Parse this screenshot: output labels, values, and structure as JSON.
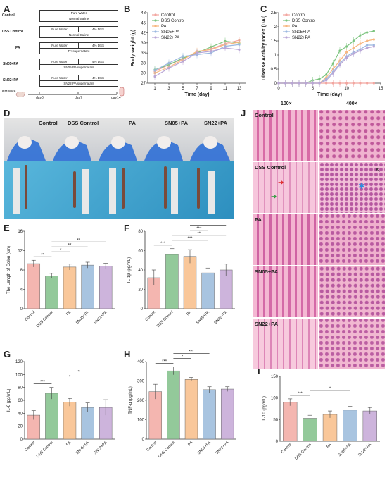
{
  "panels": {
    "A": "A",
    "B": "B",
    "C": "C",
    "D": "D",
    "E": "E",
    "F": "F",
    "G": "G",
    "H": "H",
    "I": "I",
    "J": "J"
  },
  "panel_a": {
    "groups": [
      {
        "label": "Control",
        "rows": [
          [
            "Pure Water"
          ],
          [
            "Normal Saline"
          ]
        ]
      },
      {
        "label": "DSS Control",
        "rows": [
          [
            "Pure Water",
            "4% DSS"
          ],
          [
            "Normal Saline"
          ]
        ]
      },
      {
        "label": "PA",
        "rows": [
          [
            "Pure Water",
            "4% DSS"
          ],
          [
            "PA supernatant"
          ]
        ]
      },
      {
        "label": "SN05+PA",
        "rows": [
          [
            "Pure Water",
            "4% DSS"
          ],
          [
            "SN05-PA supernatant"
          ]
        ]
      },
      {
        "label": "SN22+PA",
        "rows": [
          [
            "Pure Water",
            "4% DSS"
          ],
          [
            "SN22-PA supernatant"
          ]
        ]
      }
    ],
    "timeline": {
      "mice_label": "KM Mice",
      "ticks": [
        "day0",
        "day7",
        "day14"
      ]
    }
  },
  "panel_d": {
    "group_labels": [
      "Control",
      "DSS Control",
      "PA",
      "SN05+PA",
      "SN22+PA"
    ]
  },
  "panel_j": {
    "magnifications": [
      "100×",
      "400×"
    ],
    "row_labels": [
      "Control",
      "DSS Control",
      "PA",
      "SN05+PA",
      "SN22+PA"
    ]
  },
  "colors": {
    "Control": "#f4b6b0",
    "DSS Control": "#93c99a",
    "PA": "#f9c79a",
    "SN05+PA": "#a8c4e0",
    "SN22+PA": "#cdb4dc",
    "line_Control": "#f2a6a0",
    "line_DSS": "#7cc47f",
    "line_PA": "#f7b77f",
    "line_SN05": "#9bb8e0",
    "line_SN22": "#b9a6d6"
  },
  "chart_data": [
    {
      "id": "B",
      "type": "line",
      "xlabel": "Time (day)",
      "ylabel": "Body weight (g)",
      "xticks": [
        1,
        3,
        5,
        7,
        9,
        11,
        13
      ],
      "yticks": [
        27,
        30,
        33,
        36,
        39,
        42,
        45,
        48
      ],
      "xlim": [
        0,
        14
      ],
      "ylim": [
        27,
        48
      ],
      "x": [
        1,
        3,
        5,
        7,
        9,
        11,
        13
      ],
      "series": [
        {
          "name": "Control",
          "values": [
            30.5,
            32.5,
            34.2,
            36.3,
            37.2,
            38.8,
            39.8
          ]
        },
        {
          "name": "DSS Control",
          "values": [
            31.0,
            32.5,
            34.5,
            36.0,
            37.8,
            39.5,
            39.0
          ]
        },
        {
          "name": "PA",
          "values": [
            30.0,
            31.8,
            34.0,
            36.5,
            37.0,
            38.5,
            39.2
          ]
        },
        {
          "name": "SN05+PA",
          "values": [
            30.8,
            33.0,
            35.0,
            35.5,
            36.0,
            38.0,
            38.5
          ]
        },
        {
          "name": "SN22+PA",
          "values": [
            29.0,
            31.5,
            33.5,
            36.0,
            36.5,
            37.5,
            37.0
          ]
        }
      ],
      "legend": "top-left"
    },
    {
      "id": "C",
      "type": "line",
      "xlabel": "Time (day)",
      "ylabel": "Disease Activity Index (DAI)",
      "xticks": [
        0,
        5,
        10,
        15
      ],
      "yticks": [
        0,
        0.5,
        1.0,
        1.5,
        2.0,
        2.5
      ],
      "xlim": [
        0,
        15
      ],
      "ylim": [
        0,
        2.5
      ],
      "x": [
        0,
        1,
        2,
        3,
        4,
        5,
        6,
        7,
        8,
        9,
        10,
        11,
        12,
        13,
        14
      ],
      "series": [
        {
          "name": "Control",
          "values": [
            0,
            0,
            0,
            0,
            0,
            0,
            0,
            0,
            0,
            0,
            0,
            0,
            0,
            0,
            0
          ]
        },
        {
          "name": "DSS Control",
          "values": [
            0,
            0,
            0,
            0,
            0,
            0.1,
            0.15,
            0.3,
            0.7,
            1.15,
            1.3,
            1.5,
            1.7,
            1.8,
            1.85
          ]
        },
        {
          "name": "PA",
          "values": [
            0,
            0,
            0,
            0,
            0,
            0,
            0,
            0.2,
            0.5,
            0.8,
            1.1,
            1.25,
            1.4,
            1.5,
            1.55
          ]
        },
        {
          "name": "SN05+PA",
          "values": [
            0,
            0,
            0,
            0,
            0,
            0,
            0,
            0.15,
            0.4,
            0.7,
            0.95,
            1.1,
            1.2,
            1.35,
            1.35
          ]
        },
        {
          "name": "SN22+PA",
          "values": [
            0,
            0,
            0,
            0,
            0,
            0,
            0,
            0.1,
            0.35,
            0.65,
            0.9,
            1.05,
            1.15,
            1.25,
            1.3
          ]
        }
      ],
      "legend": "top-left"
    },
    {
      "id": "E",
      "type": "bar",
      "ylabel": "The Length of Colon (cm)",
      "categories": [
        "Control",
        "DSS Control",
        "PA",
        "SN05+PA",
        "SN22+PA"
      ],
      "values": [
        9.3,
        6.8,
        8.6,
        9.0,
        8.8
      ],
      "errors": [
        0.7,
        0.5,
        0.6,
        0.6,
        0.6
      ],
      "yticks": [
        0,
        4,
        8,
        12,
        16
      ],
      "ylim": [
        0,
        16
      ],
      "significance": [
        {
          "from": 0,
          "to": 1,
          "label": "**"
        },
        {
          "from": 1,
          "to": 2,
          "label": "*"
        },
        {
          "from": 1,
          "to": 3,
          "label": "**"
        },
        {
          "from": 1,
          "to": 4,
          "label": "**"
        }
      ]
    },
    {
      "id": "F",
      "type": "bar",
      "ylabel": "IL-1β (pg/mL)",
      "categories": [
        "Control",
        "DSS Control",
        "PA",
        "SN05+PA",
        "SN22+PA"
      ],
      "values": [
        32,
        56,
        54,
        37,
        40
      ],
      "errors": [
        8,
        6,
        7,
        5,
        6
      ],
      "yticks": [
        0,
        20,
        40,
        60,
        80
      ],
      "ylim": [
        0,
        80
      ],
      "significance": [
        {
          "from": 0,
          "to": 1,
          "label": "***"
        },
        {
          "from": 1,
          "to": 3,
          "label": "***"
        },
        {
          "from": 1,
          "to": 4,
          "label": "**"
        },
        {
          "from": 2,
          "to": 3,
          "label": "***"
        },
        {
          "from": 2,
          "to": 4,
          "label": "**"
        }
      ]
    },
    {
      "id": "G",
      "type": "bar",
      "ylabel": "IL-6 (pg/mL)",
      "categories": [
        "Control",
        "DSS Control",
        "PA",
        "SN05+PA",
        "SN22+PA"
      ],
      "values": [
        37,
        71,
        57,
        49,
        49
      ],
      "errors": [
        7,
        9,
        6,
        7,
        12
      ],
      "yticks": [
        0,
        20,
        40,
        60,
        80,
        100,
        120
      ],
      "ylim": [
        0,
        120
      ],
      "significance": [
        {
          "from": 0,
          "to": 1,
          "label": "***"
        },
        {
          "from": 1,
          "to": 3,
          "label": "*"
        },
        {
          "from": 1,
          "to": 4,
          "label": "*"
        }
      ]
    },
    {
      "id": "H",
      "type": "bar",
      "ylabel": "TNF-α (pg/mL)",
      "categories": [
        "Control",
        "DSS Control",
        "PA",
        "SN05+PA",
        "SN22+PA"
      ],
      "values": [
        245,
        352,
        308,
        255,
        258
      ],
      "errors": [
        38,
        20,
        10,
        15,
        12
      ],
      "yticks": [
        0,
        100,
        200,
        300,
        400
      ],
      "ylim": [
        0,
        400
      ],
      "significance": [
        {
          "from": 0,
          "to": 1,
          "label": "***"
        },
        {
          "from": 1,
          "to": 2,
          "label": "*"
        },
        {
          "from": 1,
          "to": 3,
          "label": "***"
        },
        {
          "from": 1,
          "to": 4,
          "label": "***"
        },
        {
          "from": 2,
          "to": 3,
          "label": "**"
        },
        {
          "from": 2,
          "to": 4,
          "label": "**"
        }
      ]
    },
    {
      "id": "I",
      "type": "bar",
      "ylabel": "IL-10 (pg/mL)",
      "categories": [
        "Control",
        "DSS Control",
        "PA",
        "SN05+PA",
        "SN22+PA"
      ],
      "values": [
        90,
        53,
        62,
        72,
        70
      ],
      "errors": [
        8,
        7,
        8,
        9,
        8
      ],
      "yticks": [
        0,
        50,
        100,
        150
      ],
      "ylim": [
        0,
        150
      ],
      "significance": [
        {
          "from": 0,
          "to": 1,
          "label": "***"
        },
        {
          "from": 1,
          "to": 3,
          "label": "*"
        }
      ]
    }
  ]
}
